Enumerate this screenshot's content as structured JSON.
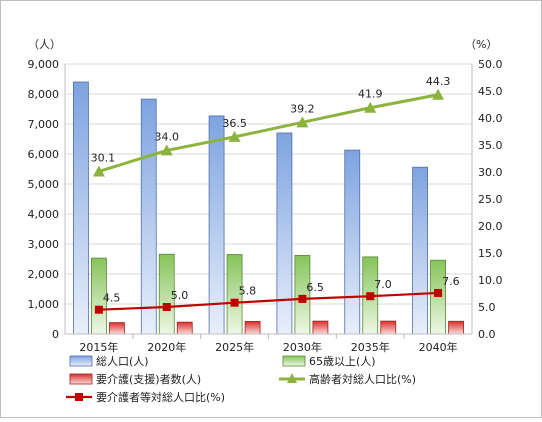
{
  "chart_data": {
    "type": "bar",
    "categories": [
      "2015年",
      "2020年",
      "2025年",
      "2030年",
      "2035年",
      "2040年"
    ],
    "y_left": {
      "unit_label": "（人）",
      "min": 0,
      "max": 9000,
      "step": 1000,
      "tick_labels": [
        "0",
        "1,000",
        "2,000",
        "3,000",
        "4,000",
        "5,000",
        "6,000",
        "7,000",
        "8,000",
        "9,000"
      ]
    },
    "y_right": {
      "unit_label": "（%）",
      "min": 0,
      "max": 50,
      "step": 5,
      "tick_labels": [
        "0.0",
        "5.0",
        "10.0",
        "15.0",
        "20.0",
        "25.0",
        "30.0",
        "35.0",
        "40.0",
        "45.0",
        "50.0"
      ]
    },
    "grid": true,
    "legend_position": "bottom",
    "series": [
      {
        "name": "総人口(人)",
        "type": "bar",
        "axis": "left",
        "color": "#6f94d6",
        "values": [
          8400,
          7830,
          7270,
          6700,
          6130,
          5560
        ]
      },
      {
        "name": "65歳以上(人)",
        "type": "bar",
        "axis": "left",
        "color": "#7fbf4d",
        "values": [
          2530,
          2660,
          2650,
          2620,
          2570,
          2460
        ]
      },
      {
        "name": "要介護(支援)者数(人)",
        "type": "bar",
        "axis": "left",
        "color": "#d9302c",
        "values": [
          380,
          395,
          420,
          430,
          430,
          425
        ]
      },
      {
        "name": "高齢者対総人口比(%)",
        "type": "line",
        "axis": "right",
        "color": "#8db33f",
        "values": [
          30.1,
          34.0,
          36.5,
          39.2,
          41.9,
          44.3
        ],
        "labels": [
          "30.1",
          "34.0",
          "36.5",
          "39.2",
          "41.9",
          "44.3"
        ]
      },
      {
        "name": "要介護者等対総人口比(%)",
        "type": "line",
        "axis": "right",
        "color": "#c00000",
        "values": [
          4.5,
          5.0,
          5.8,
          6.5,
          7.0,
          7.6
        ],
        "labels": [
          "4.5",
          "5.0",
          "5.8",
          "6.5",
          "7.0",
          "7.6"
        ]
      }
    ]
  }
}
